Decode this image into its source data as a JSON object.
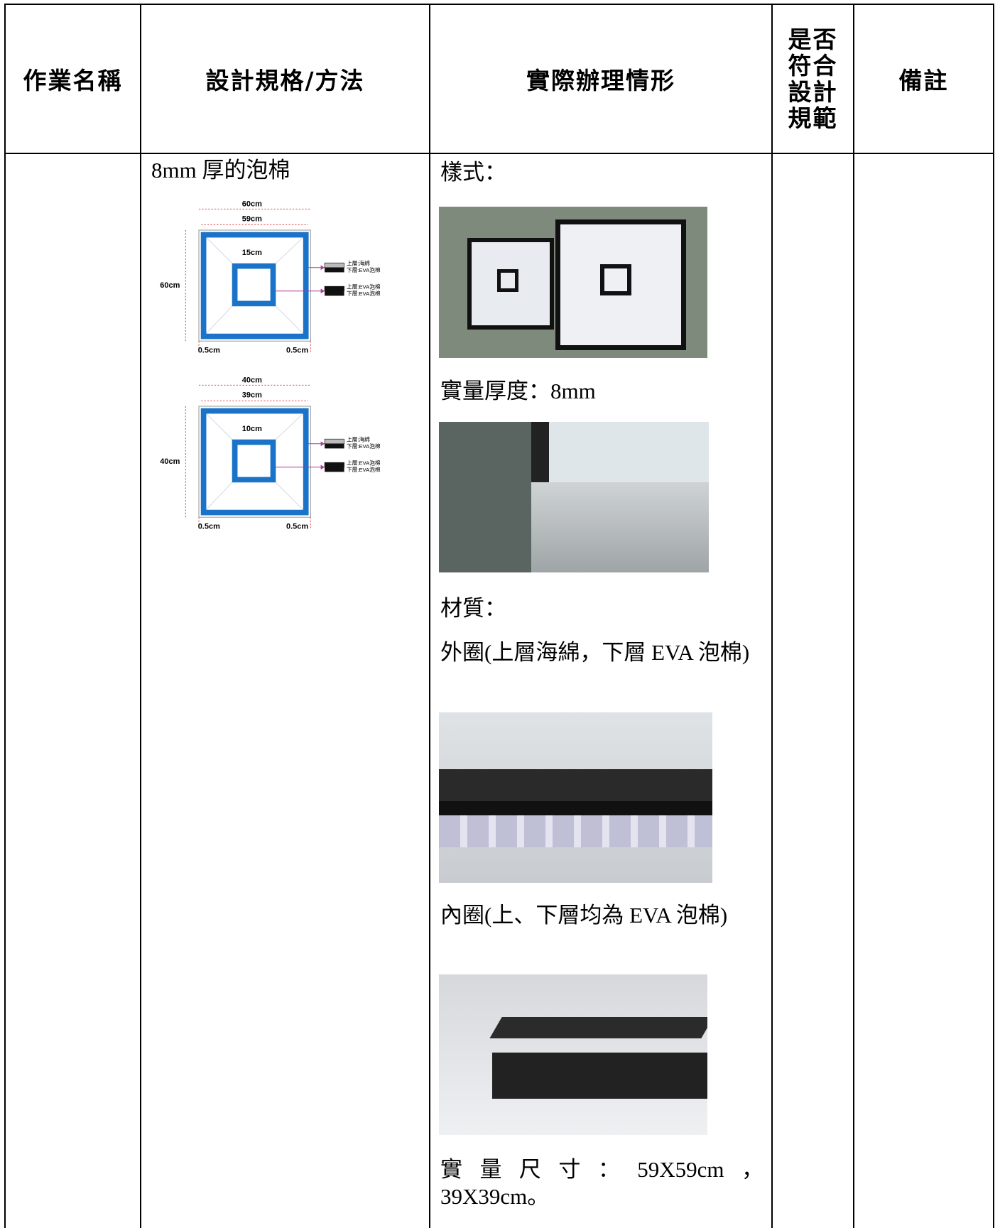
{
  "table": {
    "headers": [
      "作業名稱",
      "設計規格/方法",
      "實際辦理情形",
      "是否符合設計規範",
      "備註"
    ],
    "spec": {
      "text": "8mm 厚的泡棉",
      "diagrams": [
        {
          "width": "60cm",
          "inner_width": "59cm",
          "hole": "15cm",
          "height": "60cm",
          "border_left": "0.5cm",
          "border_right": "0.5cm",
          "legend": [
            {
              "top": "上層:海綿",
              "bottom": "下層:EVA泡棉"
            },
            {
              "top": "上層:EVA泡棉",
              "bottom": "下層:EVA泡棉"
            }
          ]
        },
        {
          "width": "40cm",
          "inner_width": "39cm",
          "hole": "10cm",
          "height": "40cm",
          "border_left": "0.5cm",
          "border_right": "0.5cm",
          "legend": [
            {
              "top": "上層:海綿",
              "bottom": "下層:EVA泡棉"
            },
            {
              "top": "上層:EVA泡棉",
              "bottom": "下層:EVA泡棉"
            }
          ]
        }
      ]
    },
    "actual": [
      "樣式：",
      "實量厚度：8mm",
      "材質：",
      "外圈(上層海綿，下層 EVA 泡棉)",
      "內圈(上、下層均為 EVA 泡棉)",
      "實量尺寸：59X59cm，39X39cm。"
    ]
  }
}
